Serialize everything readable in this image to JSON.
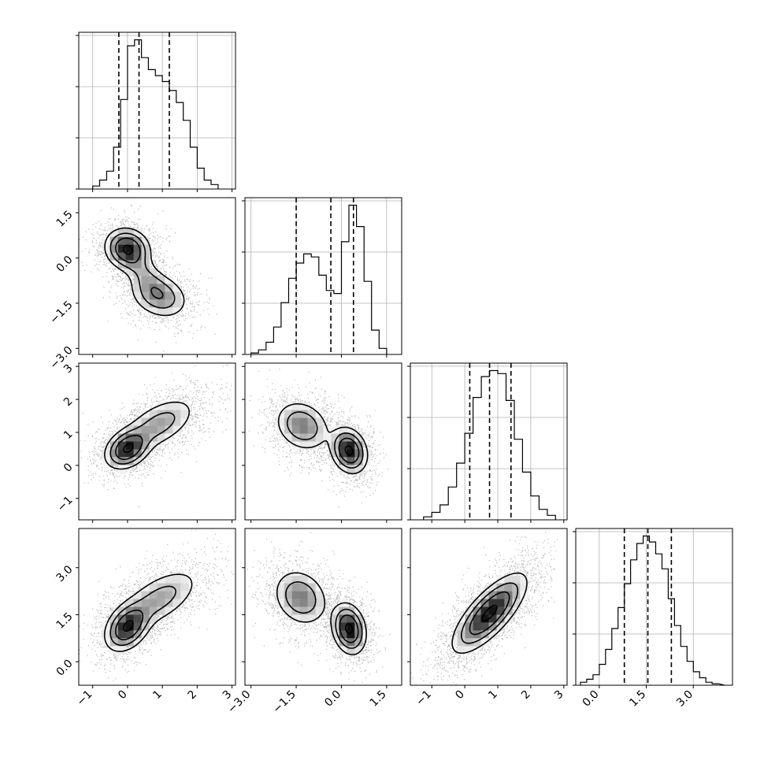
{
  "chart_data": {
    "type": "corner",
    "grid": true,
    "n_params": 4,
    "axes": [
      {
        "range": [
          -1.4,
          3.1
        ],
        "ticks": [
          -1,
          0,
          1,
          2,
          3
        ],
        "tick_labels": [
          "−1",
          "0",
          "1",
          "2",
          "3"
        ],
        "hist": {
          "edges": [
            -1.0,
            -0.8,
            -0.6,
            -0.4,
            -0.2,
            0.0,
            0.2,
            0.4,
            0.6,
            0.8,
            1.0,
            1.2,
            1.4,
            1.6,
            1.8,
            2.0,
            2.2,
            2.4,
            2.6
          ],
          "counts": [
            0.02,
            0.06,
            0.12,
            0.28,
            0.6,
            0.96,
            1.0,
            0.88,
            0.8,
            0.76,
            0.72,
            0.66,
            0.58,
            0.46,
            0.28,
            0.14,
            0.06,
            0.03
          ]
        },
        "quantiles": [
          -0.25,
          0.33,
          1.2
        ]
      },
      {
        "range": [
          -3.2,
          2.0
        ],
        "ticks": [
          -3.0,
          -1.5,
          0.0,
          1.5
        ],
        "tick_labels": [
          "−3.0",
          "−1.5",
          "0.0",
          "1.5"
        ],
        "hist": {
          "edges": [
            -3.0,
            -2.75,
            -2.5,
            -2.25,
            -2.0,
            -1.75,
            -1.5,
            -1.25,
            -1.0,
            -0.75,
            -0.5,
            -0.25,
            0.0,
            0.25,
            0.5,
            0.75,
            1.0,
            1.25,
            1.5
          ],
          "counts": [
            0.01,
            0.03,
            0.08,
            0.18,
            0.34,
            0.5,
            0.6,
            0.66,
            0.64,
            0.52,
            0.42,
            0.4,
            0.74,
            0.98,
            0.84,
            0.48,
            0.16,
            0.04
          ]
        },
        "quantiles": [
          -1.5,
          -0.35,
          0.4
        ]
      },
      {
        "range": [
          -1.65,
          3.1
        ],
        "ticks": [
          -1,
          0,
          1,
          2,
          3
        ],
        "tick_labels": [
          "−1",
          "0",
          "1",
          "2",
          "3"
        ],
        "hist": {
          "edges": [
            -1.25,
            -1.0,
            -0.75,
            -0.5,
            -0.25,
            0.0,
            0.25,
            0.5,
            0.75,
            1.0,
            1.25,
            1.5,
            1.75,
            2.0,
            2.25,
            2.5,
            2.75
          ],
          "counts": [
            0.02,
            0.05,
            0.1,
            0.22,
            0.38,
            0.58,
            0.82,
            0.96,
            1.0,
            0.98,
            0.8,
            0.54,
            0.32,
            0.16,
            0.07,
            0.03
          ]
        },
        "quantiles": [
          0.15,
          0.75,
          1.4
        ]
      },
      {
        "range": [
          -0.75,
          4.25
        ],
        "ticks": [
          0.0,
          1.5,
          3.0
        ],
        "tick_labels": [
          "0.0",
          "1.5",
          "3.0"
        ],
        "hist": {
          "edges": [
            -0.6,
            -0.4,
            -0.2,
            0.0,
            0.2,
            0.4,
            0.6,
            0.8,
            1.0,
            1.2,
            1.4,
            1.6,
            1.8,
            2.0,
            2.2,
            2.4,
            2.6,
            2.8,
            3.0,
            3.2,
            3.4,
            3.6,
            3.8,
            4.0
          ],
          "counts": [
            0.02,
            0.04,
            0.07,
            0.14,
            0.24,
            0.38,
            0.52,
            0.68,
            0.84,
            0.95,
            1.0,
            0.96,
            0.88,
            0.78,
            0.58,
            0.4,
            0.26,
            0.16,
            0.09,
            0.05,
            0.02,
            0.01
          ]
        },
        "quantiles": [
          0.8,
          1.55,
          2.3
        ]
      }
    ],
    "pairs": [
      {
        "row": 1,
        "col": 0,
        "components": [
          {
            "mx": 0.0,
            "my": 0.3,
            "sx": 0.32,
            "sy": 0.34,
            "rho": -0.1,
            "w": 1.0
          },
          {
            "mx": 0.9,
            "my": -1.25,
            "sx": 0.42,
            "sy": 0.38,
            "rho": -0.25,
            "w": 0.55
          },
          {
            "mx": 0.45,
            "my": -0.5,
            "sx": 0.35,
            "sy": 0.45,
            "rho": -0.6,
            "w": 0.3
          }
        ],
        "levels": [
          0.92,
          0.55,
          0.3,
          0.12
        ]
      },
      {
        "row": 2,
        "col": 0,
        "components": [
          {
            "mx": 0.0,
            "my": 0.5,
            "sx": 0.32,
            "sy": 0.3,
            "rho": 0.3,
            "w": 1.0
          },
          {
            "mx": 0.9,
            "my": 1.25,
            "sx": 0.55,
            "sy": 0.42,
            "rho": 0.55,
            "w": 0.45
          }
        ],
        "levels": [
          0.92,
          0.55,
          0.3,
          0.12
        ]
      },
      {
        "row": 2,
        "col": 1,
        "components": [
          {
            "mx": 0.25,
            "my": 0.45,
            "sx": 0.3,
            "sy": 0.34,
            "rho": -0.2,
            "w": 1.0
          },
          {
            "mx": -1.3,
            "my": 1.2,
            "sx": 0.45,
            "sy": 0.38,
            "rho": -0.2,
            "w": 0.55
          }
        ],
        "levels": [
          0.92,
          0.55,
          0.3,
          0.12
        ]
      },
      {
        "row": 3,
        "col": 0,
        "components": [
          {
            "mx": 0.0,
            "my": 1.1,
            "sx": 0.32,
            "sy": 0.38,
            "rho": 0.35,
            "w": 1.0
          },
          {
            "mx": 0.9,
            "my": 2.0,
            "sx": 0.6,
            "sy": 0.5,
            "rho": 0.6,
            "w": 0.45
          }
        ],
        "levels": [
          0.92,
          0.55,
          0.3,
          0.12
        ]
      },
      {
        "row": 3,
        "col": 1,
        "components": [
          {
            "mx": 0.25,
            "my": 1.05,
            "sx": 0.28,
            "sy": 0.4,
            "rho": -0.2,
            "w": 1.0
          },
          {
            "mx": -1.35,
            "my": 2.05,
            "sx": 0.45,
            "sy": 0.45,
            "rho": -0.2,
            "w": 0.55
          }
        ],
        "levels": [
          0.92,
          0.55,
          0.3,
          0.12
        ]
      },
      {
        "row": 3,
        "col": 2,
        "components": [
          {
            "mx": 0.75,
            "my": 1.55,
            "sx": 0.55,
            "sy": 0.62,
            "rho": 0.75,
            "w": 1.0
          }
        ],
        "levels": [
          0.92,
          0.55,
          0.3,
          0.12
        ]
      }
    ]
  }
}
